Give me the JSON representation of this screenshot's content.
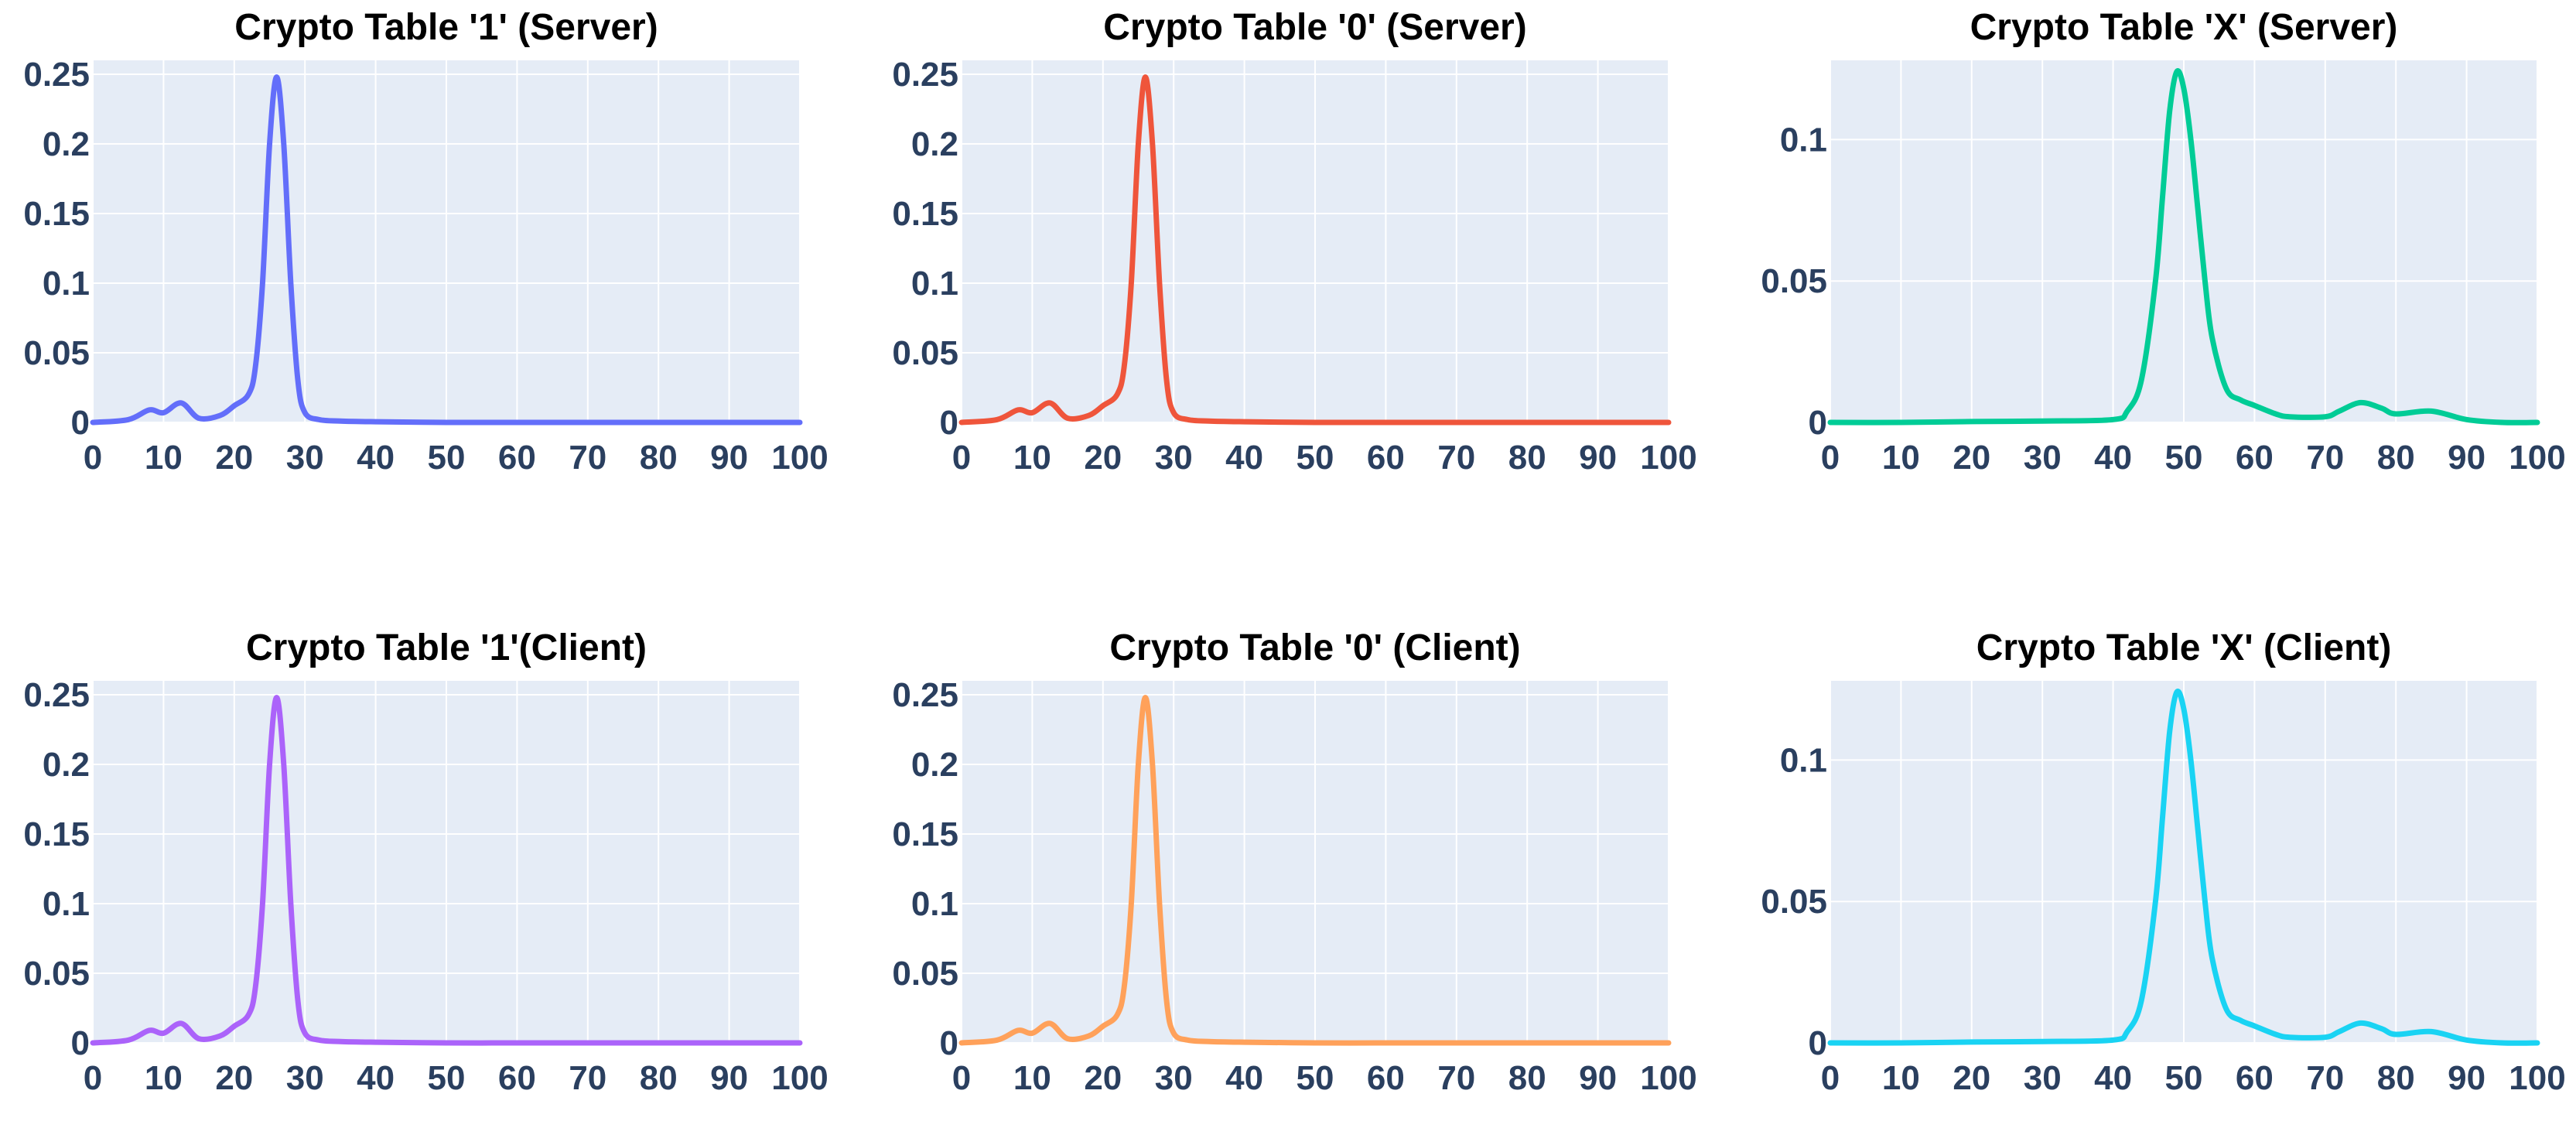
{
  "chart_data": [
    {
      "type": "line",
      "title": "Crypto Table '1' (Server)",
      "color": "#636efa",
      "xlim": [
        0,
        100
      ],
      "ylim": [
        0,
        0.26
      ],
      "x_ticks": [
        "0",
        "10",
        "20",
        "30",
        "40",
        "50",
        "60",
        "70",
        "80",
        "90",
        "100"
      ],
      "y_ticks": [
        {
          "value": 0,
          "label": "0"
        },
        {
          "value": 0.05,
          "label": "0.05"
        },
        {
          "value": 0.1,
          "label": "0.1"
        },
        {
          "value": 0.15,
          "label": "0.15"
        },
        {
          "value": 0.2,
          "label": "0.2"
        },
        {
          "value": 0.25,
          "label": "0.25"
        }
      ],
      "series": [
        {
          "name": "Crypto Table '1' (Server)",
          "x": [
            0,
            5,
            8,
            10,
            12.5,
            15,
            18,
            20,
            22,
            23,
            24,
            25,
            26,
            27,
            28,
            29,
            30,
            32,
            35,
            40,
            50,
            60,
            70,
            80,
            90,
            100
          ],
          "y": [
            0,
            0.002,
            0.009,
            0.007,
            0.014,
            0.003,
            0.005,
            0.012,
            0.02,
            0.04,
            0.1,
            0.2,
            0.248,
            0.2,
            0.1,
            0.03,
            0.007,
            0.002,
            0.001,
            0.0005,
            0,
            0,
            0,
            0,
            0,
            0
          ]
        }
      ]
    },
    {
      "type": "line",
      "title": "Crypto Table '0' (Server)",
      "color": "#ef553b",
      "xlim": [
        0,
        100
      ],
      "ylim": [
        0,
        0.26
      ],
      "x_ticks": [
        "0",
        "10",
        "20",
        "30",
        "40",
        "50",
        "60",
        "70",
        "80",
        "90",
        "100"
      ],
      "y_ticks": [
        {
          "value": 0,
          "label": "0"
        },
        {
          "value": 0.05,
          "label": "0.05"
        },
        {
          "value": 0.1,
          "label": "0.1"
        },
        {
          "value": 0.15,
          "label": "0.15"
        },
        {
          "value": 0.2,
          "label": "0.2"
        },
        {
          "value": 0.25,
          "label": "0.25"
        }
      ],
      "series": [
        {
          "name": "Crypto Table '0' (Server)",
          "x": [
            0,
            5,
            8,
            10,
            12.5,
            15,
            18,
            20,
            22,
            23,
            24,
            25,
            26,
            27,
            28,
            29,
            30,
            32,
            35,
            40,
            50,
            60,
            70,
            80,
            90,
            100
          ],
          "y": [
            0,
            0.002,
            0.009,
            0.007,
            0.014,
            0.003,
            0.005,
            0.012,
            0.02,
            0.04,
            0.1,
            0.2,
            0.248,
            0.2,
            0.1,
            0.03,
            0.007,
            0.002,
            0.001,
            0.0005,
            0,
            0,
            0,
            0,
            0,
            0
          ]
        }
      ]
    },
    {
      "type": "line",
      "title": "Crypto Table 'X' (Server)",
      "color": "#00cc96",
      "xlim": [
        0,
        100
      ],
      "ylim": [
        0,
        0.128
      ],
      "x_ticks": [
        "0",
        "10",
        "20",
        "30",
        "40",
        "50",
        "60",
        "70",
        "80",
        "90",
        "100"
      ],
      "y_ticks": [
        {
          "value": 0,
          "label": "0"
        },
        {
          "value": 0.05,
          "label": "0.05"
        },
        {
          "value": 0.1,
          "label": "0.1"
        }
      ],
      "series": [
        {
          "name": "Crypto Table 'X' (Server)",
          "x": [
            0,
            10,
            20,
            30,
            40,
            42,
            44,
            46,
            47,
            48,
            49,
            50,
            51,
            52,
            53,
            54,
            56,
            58,
            60,
            63,
            65,
            70,
            72,
            75,
            78,
            80,
            85,
            90,
            95,
            100
          ],
          "y": [
            0,
            0,
            0.0003,
            0.0005,
            0.001,
            0.004,
            0.015,
            0.05,
            0.08,
            0.11,
            0.124,
            0.118,
            0.1,
            0.075,
            0.05,
            0.03,
            0.012,
            0.008,
            0.006,
            0.003,
            0.002,
            0.002,
            0.004,
            0.007,
            0.005,
            0.003,
            0.004,
            0.001,
            0,
            0
          ]
        }
      ]
    },
    {
      "type": "line",
      "title": "Crypto Table '1'(Client)",
      "color": "#ab63fa",
      "xlim": [
        0,
        100
      ],
      "ylim": [
        0,
        0.26
      ],
      "x_ticks": [
        "0",
        "10",
        "20",
        "30",
        "40",
        "50",
        "60",
        "70",
        "80",
        "90",
        "100"
      ],
      "y_ticks": [
        {
          "value": 0,
          "label": "0"
        },
        {
          "value": 0.05,
          "label": "0.05"
        },
        {
          "value": 0.1,
          "label": "0.1"
        },
        {
          "value": 0.15,
          "label": "0.15"
        },
        {
          "value": 0.2,
          "label": "0.2"
        },
        {
          "value": 0.25,
          "label": "0.25"
        }
      ],
      "series": [
        {
          "name": "Crypto Table '1'(Client)",
          "x": [
            0,
            5,
            8,
            10,
            12.5,
            15,
            18,
            20,
            22,
            23,
            24,
            25,
            26,
            27,
            28,
            29,
            30,
            32,
            35,
            40,
            50,
            60,
            70,
            80,
            90,
            100
          ],
          "y": [
            0,
            0.002,
            0.009,
            0.007,
            0.014,
            0.003,
            0.005,
            0.012,
            0.02,
            0.04,
            0.1,
            0.2,
            0.248,
            0.2,
            0.1,
            0.03,
            0.007,
            0.002,
            0.001,
            0.0005,
            0,
            0,
            0,
            0,
            0,
            0
          ]
        }
      ]
    },
    {
      "type": "line",
      "title": "Crypto Table '0' (Client)",
      "color": "#ffa15a",
      "xlim": [
        0,
        100
      ],
      "ylim": [
        0,
        0.26
      ],
      "x_ticks": [
        "0",
        "10",
        "20",
        "30",
        "40",
        "50",
        "60",
        "70",
        "80",
        "90",
        "100"
      ],
      "y_ticks": [
        {
          "value": 0,
          "label": "0"
        },
        {
          "value": 0.05,
          "label": "0.05"
        },
        {
          "value": 0.1,
          "label": "0.1"
        },
        {
          "value": 0.15,
          "label": "0.15"
        },
        {
          "value": 0.2,
          "label": "0.2"
        },
        {
          "value": 0.25,
          "label": "0.25"
        }
      ],
      "series": [
        {
          "name": "Crypto Table '0' (Client)",
          "x": [
            0,
            5,
            8,
            10,
            12.5,
            15,
            18,
            20,
            22,
            23,
            24,
            25,
            26,
            27,
            28,
            29,
            30,
            32,
            35,
            40,
            50,
            60,
            70,
            80,
            90,
            100
          ],
          "y": [
            0,
            0.002,
            0.009,
            0.007,
            0.014,
            0.003,
            0.005,
            0.012,
            0.02,
            0.04,
            0.1,
            0.2,
            0.248,
            0.2,
            0.1,
            0.03,
            0.007,
            0.002,
            0.001,
            0.0005,
            0,
            0,
            0,
            0,
            0,
            0
          ]
        }
      ]
    },
    {
      "type": "line",
      "title": "Crypto Table 'X' (Client)",
      "color": "#19d3f3",
      "xlim": [
        0,
        100
      ],
      "ylim": [
        0,
        0.128
      ],
      "x_ticks": [
        "0",
        "10",
        "20",
        "30",
        "40",
        "50",
        "60",
        "70",
        "80",
        "90",
        "100"
      ],
      "y_ticks": [
        {
          "value": 0,
          "label": "0"
        },
        {
          "value": 0.05,
          "label": "0.05"
        },
        {
          "value": 0.1,
          "label": "0.1"
        }
      ],
      "series": [
        {
          "name": "Crypto Table 'X' (Client)",
          "x": [
            0,
            10,
            20,
            30,
            40,
            42,
            44,
            46,
            47,
            48,
            49,
            50,
            51,
            52,
            53,
            54,
            56,
            58,
            60,
            63,
            65,
            70,
            72,
            75,
            78,
            80,
            85,
            90,
            95,
            100
          ],
          "y": [
            0,
            0,
            0.0003,
            0.0005,
            0.001,
            0.004,
            0.015,
            0.05,
            0.08,
            0.11,
            0.124,
            0.118,
            0.1,
            0.075,
            0.05,
            0.03,
            0.012,
            0.008,
            0.006,
            0.003,
            0.002,
            0.002,
            0.004,
            0.007,
            0.005,
            0.003,
            0.004,
            0.001,
            0,
            0
          ]
        }
      ]
    }
  ]
}
